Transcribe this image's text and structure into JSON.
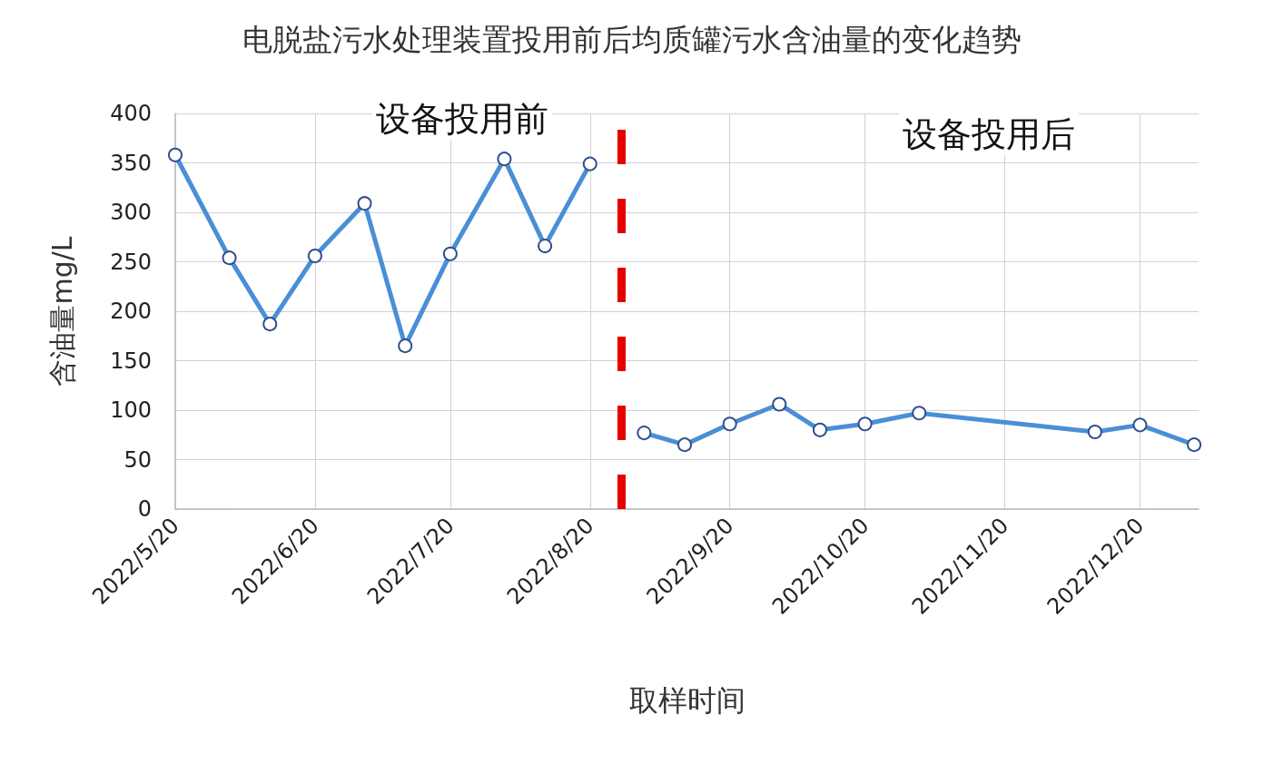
{
  "chart_data": {
    "type": "line",
    "title": "电脱盐污水处理装置投用前后均质罐污水含油量的变化趋势",
    "xlabel": "取样时间",
    "ylabel": "含油量mg/L",
    "annotations": [
      "设备投用前",
      "设备投用后"
    ],
    "series": [
      {
        "color": "#4a8fd6",
        "x": [
          "2022-05-20",
          "2022-06-01",
          "2022-06-10",
          "2022-06-20",
          "2022-07-01",
          "2022-07-10",
          "2022-07-20",
          "2022-08-01",
          "2022-08-10",
          "2022-08-20"
        ],
        "values": [
          358,
          254,
          187,
          256,
          309,
          165,
          258,
          354,
          266,
          349
        ]
      },
      {
        "color": "#4a8fd6",
        "x": [
          "2022-09-01",
          "2022-09-10",
          "2022-09-20",
          "2022-10-01",
          "2022-10-10",
          "2022-10-20",
          "2022-11-01",
          "2022-12-10",
          "2022-12-20",
          "2023-01-01"
        ],
        "values": [
          77,
          65,
          86,
          106,
          80,
          86,
          97,
          78,
          85,
          65
        ]
      }
    ],
    "xlim": [
      "2022-05-20",
      "2023-01-02"
    ],
    "xticks": [
      {
        "value": "2022-05-20",
        "label": "2022/5/20"
      },
      {
        "value": "2022-06-20",
        "label": "2022/6/20"
      },
      {
        "value": "2022-07-20",
        "label": "2022/7/20"
      },
      {
        "value": "2022-08-20",
        "label": "2022/8/20"
      },
      {
        "value": "2022-09-20",
        "label": "2022/9/20"
      },
      {
        "value": "2022-10-20",
        "label": "2022/10/20"
      },
      {
        "value": "2022-11-20",
        "label": "2022/11/20"
      },
      {
        "value": "2022-12-20",
        "label": "2022/12/20"
      }
    ],
    "ylim": [
      0,
      400
    ],
    "yticks": [
      0,
      50,
      100,
      150,
      200,
      250,
      300,
      350,
      400
    ],
    "ref_lines": [
      {
        "axis": "x",
        "value": "2022-08-27",
        "label": null,
        "color": "#e60000",
        "line_style": "dashed"
      }
    ],
    "grid": true,
    "marker": "circle",
    "line_style": "solid"
  }
}
